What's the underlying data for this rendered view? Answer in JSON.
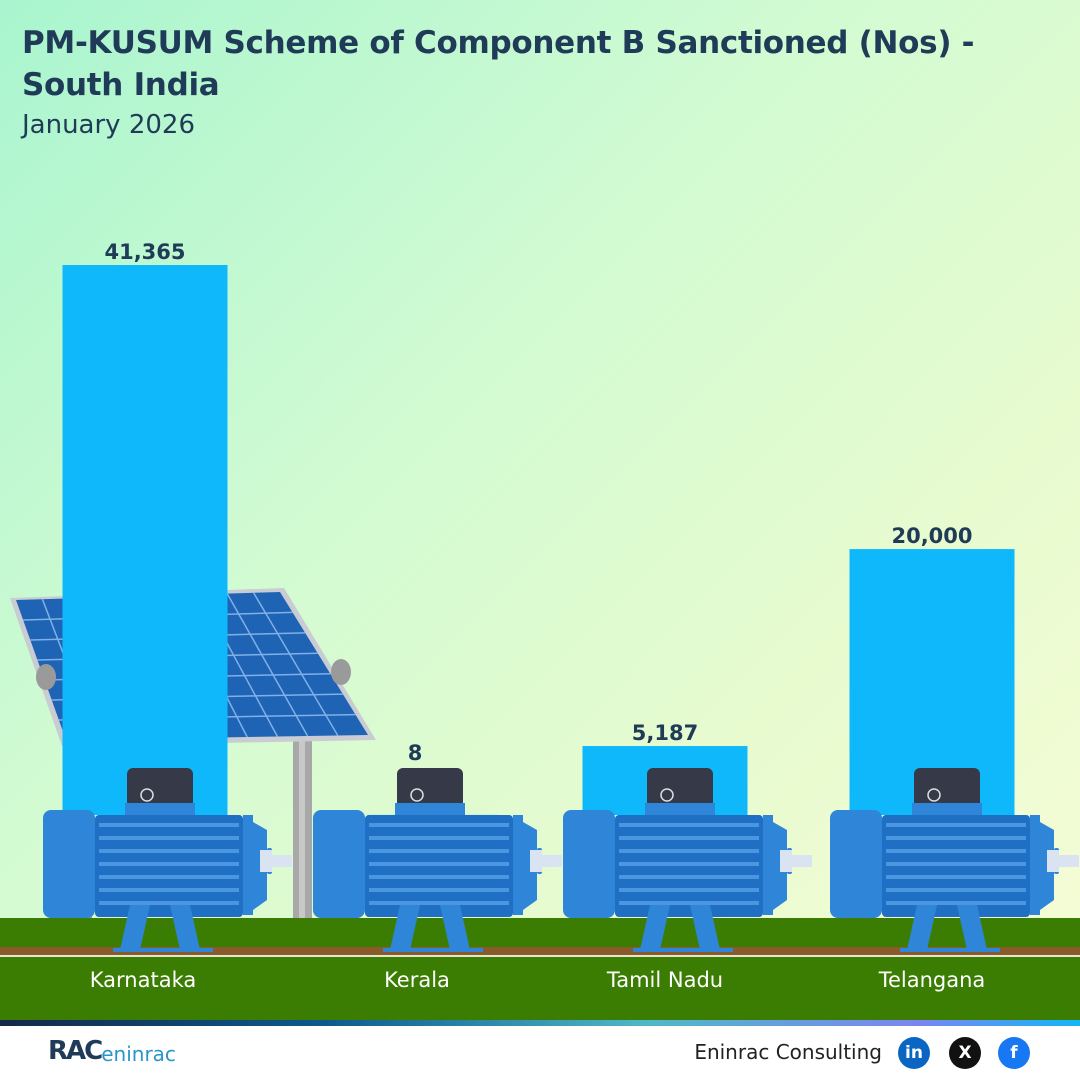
{
  "chart_data": {
    "type": "bar",
    "title": "PM-KUSUM Scheme of Component B Sanctioned (Nos) - South India",
    "subtitle": "January 2026",
    "categories": [
      "Karnataka",
      "Kerala",
      "Tamil Nadu",
      "Telangana"
    ],
    "values": [
      41365,
      8,
      5187,
      20000
    ],
    "value_labels": [
      "41,365",
      "8",
      "5,187",
      "20,000"
    ],
    "xlabel": "",
    "ylabel": "",
    "ylim": [
      0,
      41365
    ],
    "grid": false,
    "legend": "none",
    "bar_color": "#0fb8fb"
  },
  "footer": {
    "logo_text_1": "RAC",
    "logo_text_2": "eninrac",
    "brand": "Eninrac Consulting",
    "social": [
      "in",
      "X",
      "f"
    ]
  },
  "colors": {
    "title": "#1f3b57",
    "grass": "#3a7d02",
    "soil": "#8b5a2b",
    "motor": "#2f86d9"
  }
}
